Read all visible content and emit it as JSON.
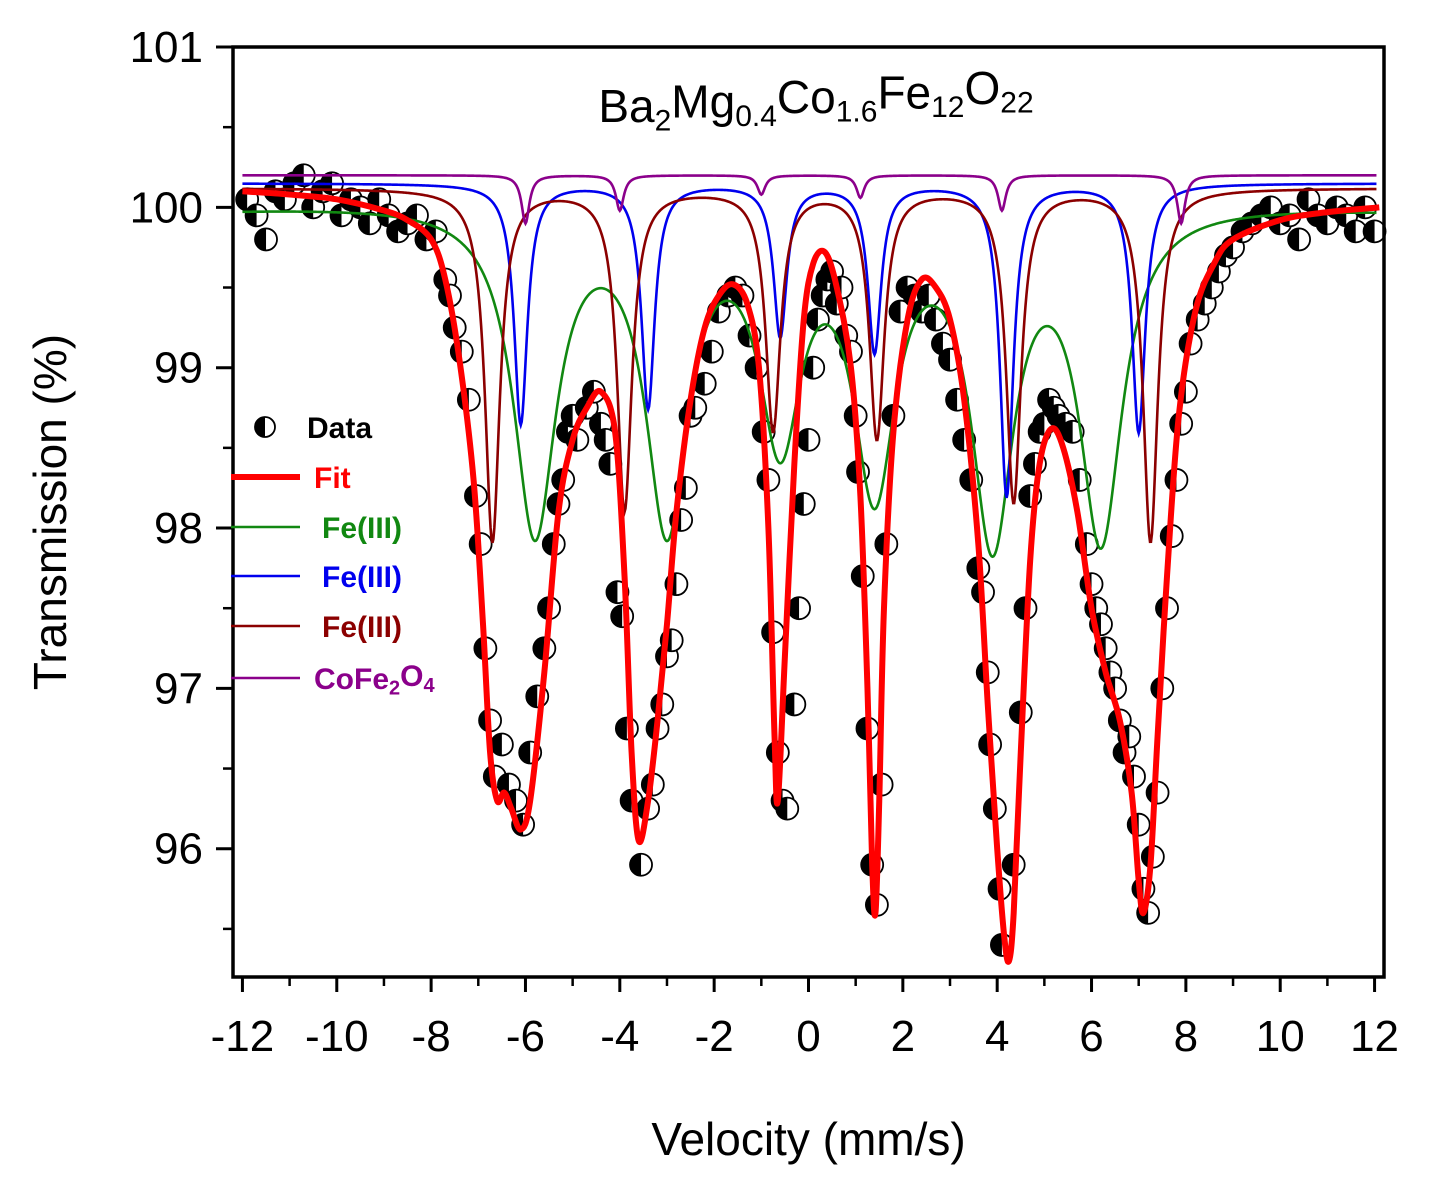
{
  "chart_data": {
    "type": "line",
    "title_parts": [
      {
        "text": "Ba",
        "sub": false
      },
      {
        "text": "2",
        "sub": true
      },
      {
        "text": "Mg",
        "sub": false
      },
      {
        "text": "0.4",
        "sub": true
      },
      {
        "text": "Co",
        "sub": false
      },
      {
        "text": "1.6",
        "sub": true
      },
      {
        "text": "Fe",
        "sub": false
      },
      {
        "text": "12",
        "sub": true
      },
      {
        "text": "O",
        "sub": false
      },
      {
        "text": "22",
        "sub": true
      }
    ],
    "xlabel": "Velocity (mm/s)",
    "ylabel": "Transmission (%)",
    "xlim": [
      -12.2,
      12.2
    ],
    "ylim": [
      95.2,
      101
    ],
    "xticks": [
      -12,
      -10,
      -8,
      -6,
      -4,
      -2,
      0,
      2,
      4,
      6,
      8,
      10,
      12
    ],
    "xtick_labels": [
      "-12",
      "-10",
      "-8",
      "-6",
      "-4",
      "-2",
      "0",
      "2",
      "4",
      "6",
      "8",
      "10",
      "12"
    ],
    "yticks": [
      96,
      97,
      98,
      99,
      100,
      101
    ],
    "ytick_labels": [
      "96",
      "97",
      "98",
      "99",
      "100",
      "101"
    ],
    "legend": [
      {
        "label_parts": [
          {
            "text": "Data",
            "sub": false
          }
        ],
        "color": "#000000",
        "kind": "marker"
      },
      {
        "label_parts": [
          {
            "text": "Fit",
            "sub": false
          }
        ],
        "color": "#ff0000",
        "kind": "line-thick"
      },
      {
        "label_parts": [
          {
            "text": "Fe(III)",
            "sub": false
          }
        ],
        "color": "#118811",
        "kind": "line"
      },
      {
        "label_parts": [
          {
            "text": "Fe(III)",
            "sub": false
          }
        ],
        "color": "#0000ee",
        "kind": "line"
      },
      {
        "label_parts": [
          {
            "text": "Fe(III)",
            "sub": false
          }
        ],
        "color": "#8b0000",
        "kind": "line"
      },
      {
        "label_parts": [
          {
            "text": "CoFe",
            "sub": false
          },
          {
            "text": "2",
            "sub": true
          },
          {
            "text": "O",
            "sub": false
          },
          {
            "text": "4",
            "sub": true
          }
        ],
        "color": "#8b008b",
        "kind": "line"
      }
    ],
    "series": [
      {
        "name": "Fe(III) sextet 1",
        "color": "#118811",
        "baseline": 100.15,
        "slope": -0.012,
        "width": 0.55,
        "peaks": [
          [
            -5.8,
            2.05
          ],
          [
            -3.0,
            2.0
          ],
          [
            -0.6,
            1.45
          ],
          [
            1.4,
            1.75
          ],
          [
            3.9,
            2.05
          ],
          [
            6.2,
            2.05
          ]
        ]
      },
      {
        "name": "Fe(III) sextet 2",
        "color": "#0000ee",
        "baseline": 100.15,
        "slope": 0.0,
        "width": 0.17,
        "peaks": [
          [
            -6.1,
            1.5
          ],
          [
            -3.4,
            1.4
          ],
          [
            -0.6,
            0.95
          ],
          [
            1.4,
            1.05
          ],
          [
            4.2,
            1.95
          ],
          [
            7.0,
            1.55
          ]
        ]
      },
      {
        "name": "Fe(III) sextet 3",
        "color": "#8b0000",
        "baseline": 100.12,
        "slope": 0.0,
        "width": 0.19,
        "peaks": [
          [
            -6.7,
            2.2
          ],
          [
            -3.9,
            2.0
          ],
          [
            -0.75,
            1.5
          ],
          [
            1.45,
            1.55
          ],
          [
            4.35,
            1.95
          ],
          [
            7.25,
            2.2
          ]
        ]
      },
      {
        "name": "CoFe2O4",
        "color": "#8b008b",
        "baseline": 100.2,
        "slope": 0.0,
        "width": 0.1,
        "peaks": [
          [
            -6.0,
            0.3
          ],
          [
            -4.0,
            0.22
          ],
          [
            -1.0,
            0.12
          ],
          [
            1.1,
            0.14
          ],
          [
            4.1,
            0.22
          ],
          [
            7.9,
            0.3
          ]
        ]
      }
    ],
    "fit": {
      "name": "Fit",
      "color": "#ff0000",
      "points": [
        [
          -12.0,
          100.1
        ],
        [
          -11.0,
          100.08
        ],
        [
          -10.0,
          100.05
        ],
        [
          -9.0,
          99.98
        ],
        [
          -8.5,
          99.92
        ],
        [
          -8.0,
          99.8
        ],
        [
          -7.7,
          99.55
        ],
        [
          -7.4,
          99.05
        ],
        [
          -7.1,
          98.3
        ],
        [
          -6.9,
          97.4
        ],
        [
          -6.75,
          96.6
        ],
        [
          -6.6,
          96.3
        ],
        [
          -6.45,
          96.35
        ],
        [
          -6.3,
          96.25
        ],
        [
          -6.1,
          96.12
        ],
        [
          -5.9,
          96.3
        ],
        [
          -5.6,
          97.1
        ],
        [
          -5.3,
          98.1
        ],
        [
          -5.0,
          98.55
        ],
        [
          -4.7,
          98.75
        ],
        [
          -4.4,
          98.85
        ],
        [
          -4.1,
          98.6
        ],
        [
          -3.9,
          97.7
        ],
        [
          -3.75,
          96.6
        ],
        [
          -3.6,
          96.05
        ],
        [
          -3.4,
          96.3
        ],
        [
          -3.2,
          96.8
        ],
        [
          -3.0,
          97.4
        ],
        [
          -2.8,
          98.1
        ],
        [
          -2.5,
          98.8
        ],
        [
          -2.2,
          99.25
        ],
        [
          -1.9,
          99.45
        ],
        [
          -1.6,
          99.52
        ],
        [
          -1.3,
          99.4
        ],
        [
          -1.05,
          99.0
        ],
        [
          -0.85,
          98.0
        ],
        [
          -0.72,
          96.7
        ],
        [
          -0.65,
          96.3
        ],
        [
          -0.5,
          97.2
        ],
        [
          -0.3,
          98.4
        ],
        [
          -0.1,
          99.3
        ],
        [
          0.1,
          99.65
        ],
        [
          0.35,
          99.72
        ],
        [
          0.6,
          99.5
        ],
        [
          0.9,
          99.0
        ],
        [
          1.1,
          98.2
        ],
        [
          1.25,
          97.0
        ],
        [
          1.35,
          95.9
        ],
        [
          1.42,
          95.6
        ],
        [
          1.5,
          96.3
        ],
        [
          1.6,
          97.5
        ],
        [
          1.8,
          98.6
        ],
        [
          2.1,
          99.3
        ],
        [
          2.4,
          99.55
        ],
        [
          2.7,
          99.5
        ],
        [
          3.0,
          99.3
        ],
        [
          3.3,
          98.8
        ],
        [
          3.6,
          97.9
        ],
        [
          3.8,
          96.9
        ],
        [
          4.0,
          96.0
        ],
        [
          4.15,
          95.45
        ],
        [
          4.25,
          95.3
        ],
        [
          4.35,
          95.6
        ],
        [
          4.5,
          96.6
        ],
        [
          4.7,
          97.8
        ],
        [
          4.9,
          98.4
        ],
        [
          5.15,
          98.62
        ],
        [
          5.4,
          98.5
        ],
        [
          5.7,
          98.1
        ],
        [
          6.0,
          97.5
        ],
        [
          6.3,
          97.1
        ],
        [
          6.6,
          96.8
        ],
        [
          6.85,
          96.35
        ],
        [
          7.0,
          95.8
        ],
        [
          7.1,
          95.6
        ],
        [
          7.25,
          95.9
        ],
        [
          7.4,
          96.7
        ],
        [
          7.6,
          97.7
        ],
        [
          7.85,
          98.7
        ],
        [
          8.2,
          99.35
        ],
        [
          8.6,
          99.65
        ],
        [
          9.0,
          99.8
        ],
        [
          10.0,
          99.92
        ],
        [
          11.0,
          99.97
        ],
        [
          12.1,
          100.0
        ]
      ]
    },
    "data_points": [
      [
        -11.9,
        100.05
      ],
      [
        -11.7,
        99.95
      ],
      [
        -11.5,
        99.8
      ],
      [
        -11.3,
        100.1
      ],
      [
        -11.1,
        100.05
      ],
      [
        -10.9,
        100.15
      ],
      [
        -10.7,
        100.2
      ],
      [
        -10.5,
        100.0
      ],
      [
        -10.3,
        100.1
      ],
      [
        -10.1,
        100.15
      ],
      [
        -9.9,
        99.95
      ],
      [
        -9.7,
        100.05
      ],
      [
        -9.5,
        100.0
      ],
      [
        -9.3,
        99.9
      ],
      [
        -9.1,
        100.05
      ],
      [
        -8.9,
        99.95
      ],
      [
        -8.7,
        99.85
      ],
      [
        -8.5,
        99.9
      ],
      [
        -8.3,
        99.95
      ],
      [
        -8.1,
        99.8
      ],
      [
        -7.9,
        99.85
      ],
      [
        -7.7,
        99.55
      ],
      [
        -7.6,
        99.45
      ],
      [
        -7.5,
        99.25
      ],
      [
        -7.35,
        99.1
      ],
      [
        -7.2,
        98.8
      ],
      [
        -7.05,
        98.2
      ],
      [
        -6.95,
        97.9
      ],
      [
        -6.85,
        97.25
      ],
      [
        -6.75,
        96.8
      ],
      [
        -6.65,
        96.45
      ],
      [
        -6.5,
        96.65
      ],
      [
        -6.35,
        96.4
      ],
      [
        -6.2,
        96.3
      ],
      [
        -6.05,
        96.15
      ],
      [
        -5.9,
        96.6
      ],
      [
        -5.75,
        96.95
      ],
      [
        -5.6,
        97.25
      ],
      [
        -5.5,
        97.5
      ],
      [
        -5.4,
        97.9
      ],
      [
        -5.3,
        98.15
      ],
      [
        -5.2,
        98.3
      ],
      [
        -5.1,
        98.6
      ],
      [
        -5.0,
        98.7
      ],
      [
        -4.9,
        98.55
      ],
      [
        -4.7,
        98.75
      ],
      [
        -4.55,
        98.85
      ],
      [
        -4.4,
        98.65
      ],
      [
        -4.3,
        98.55
      ],
      [
        -4.2,
        98.4
      ],
      [
        -4.05,
        97.6
      ],
      [
        -3.95,
        97.45
      ],
      [
        -3.85,
        96.75
      ],
      [
        -3.75,
        96.3
      ],
      [
        -3.55,
        95.9
      ],
      [
        -3.4,
        96.25
      ],
      [
        -3.3,
        96.4
      ],
      [
        -3.2,
        96.75
      ],
      [
        -3.1,
        96.9
      ],
      [
        -3.0,
        97.2
      ],
      [
        -2.9,
        97.3
      ],
      [
        -2.8,
        97.65
      ],
      [
        -2.7,
        98.05
      ],
      [
        -2.6,
        98.25
      ],
      [
        -2.5,
        98.7
      ],
      [
        -2.4,
        98.75
      ],
      [
        -2.2,
        98.9
      ],
      [
        -2.05,
        99.1
      ],
      [
        -1.9,
        99.35
      ],
      [
        -1.7,
        99.45
      ],
      [
        -1.55,
        99.5
      ],
      [
        -1.4,
        99.45
      ],
      [
        -1.25,
        99.2
      ],
      [
        -1.1,
        99.0
      ],
      [
        -0.95,
        98.6
      ],
      [
        -0.85,
        98.3
      ],
      [
        -0.75,
        97.35
      ],
      [
        -0.65,
        96.6
      ],
      [
        -0.55,
        96.3
      ],
      [
        -0.45,
        96.25
      ],
      [
        -0.3,
        96.9
      ],
      [
        -0.2,
        97.5
      ],
      [
        -0.1,
        98.15
      ],
      [
        0.0,
        98.55
      ],
      [
        0.1,
        99.0
      ],
      [
        0.2,
        99.3
      ],
      [
        0.3,
        99.45
      ],
      [
        0.4,
        99.55
      ],
      [
        0.5,
        99.6
      ],
      [
        0.6,
        99.4
      ],
      [
        0.7,
        99.5
      ],
      [
        0.8,
        99.2
      ],
      [
        0.9,
        99.1
      ],
      [
        1.0,
        98.7
      ],
      [
        1.05,
        98.35
      ],
      [
        1.15,
        97.7
      ],
      [
        1.25,
        96.75
      ],
      [
        1.35,
        95.9
      ],
      [
        1.45,
        95.65
      ],
      [
        1.55,
        96.4
      ],
      [
        1.65,
        97.9
      ],
      [
        1.8,
        98.7
      ],
      [
        1.95,
        99.35
      ],
      [
        2.1,
        99.5
      ],
      [
        2.25,
        99.45
      ],
      [
        2.4,
        99.35
      ],
      [
        2.55,
        99.45
      ],
      [
        2.7,
        99.3
      ],
      [
        2.85,
        99.15
      ],
      [
        3.0,
        99.05
      ],
      [
        3.15,
        98.8
      ],
      [
        3.3,
        98.55
      ],
      [
        3.45,
        98.3
      ],
      [
        3.6,
        97.75
      ],
      [
        3.7,
        97.6
      ],
      [
        3.8,
        97.1
      ],
      [
        3.85,
        96.65
      ],
      [
        3.95,
        96.25
      ],
      [
        4.05,
        95.75
      ],
      [
        4.1,
        95.4
      ],
      [
        4.35,
        95.9
      ],
      [
        4.5,
        96.85
      ],
      [
        4.6,
        97.5
      ],
      [
        4.7,
        98.2
      ],
      [
        4.8,
        98.4
      ],
      [
        4.9,
        98.6
      ],
      [
        5.0,
        98.65
      ],
      [
        5.1,
        98.8
      ],
      [
        5.2,
        98.75
      ],
      [
        5.3,
        98.7
      ],
      [
        5.45,
        98.65
      ],
      [
        5.6,
        98.6
      ],
      [
        5.75,
        98.3
      ],
      [
        5.9,
        97.9
      ],
      [
        6.0,
        97.65
      ],
      [
        6.1,
        97.5
      ],
      [
        6.2,
        97.4
      ],
      [
        6.3,
        97.25
      ],
      [
        6.4,
        97.1
      ],
      [
        6.5,
        97.0
      ],
      [
        6.6,
        96.8
      ],
      [
        6.7,
        96.6
      ],
      [
        6.8,
        96.7
      ],
      [
        6.9,
        96.45
      ],
      [
        7.0,
        96.15
      ],
      [
        7.1,
        95.75
      ],
      [
        7.2,
        95.6
      ],
      [
        7.3,
        95.95
      ],
      [
        7.4,
        96.35
      ],
      [
        7.5,
        97.0
      ],
      [
        7.6,
        97.5
      ],
      [
        7.7,
        97.95
      ],
      [
        7.8,
        98.3
      ],
      [
        7.9,
        98.65
      ],
      [
        8.0,
        98.85
      ],
      [
        8.1,
        99.15
      ],
      [
        8.25,
        99.3
      ],
      [
        8.4,
        99.4
      ],
      [
        8.55,
        99.5
      ],
      [
        8.7,
        99.6
      ],
      [
        8.85,
        99.7
      ],
      [
        9.0,
        99.75
      ],
      [
        9.2,
        99.85
      ],
      [
        9.4,
        99.9
      ],
      [
        9.6,
        99.95
      ],
      [
        9.8,
        100.0
      ],
      [
        10.0,
        99.9
      ],
      [
        10.2,
        99.95
      ],
      [
        10.4,
        99.8
      ],
      [
        10.6,
        100.05
      ],
      [
        10.8,
        99.95
      ],
      [
        11.0,
        99.9
      ],
      [
        11.2,
        100.0
      ],
      [
        11.4,
        99.95
      ],
      [
        11.6,
        99.85
      ],
      [
        11.8,
        100.0
      ],
      [
        12.0,
        99.85
      ]
    ]
  }
}
